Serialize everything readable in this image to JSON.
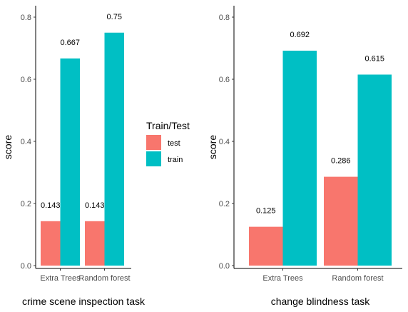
{
  "colors": {
    "test": "#F8766D",
    "train": "#00BFC4",
    "axis": "#000000",
    "tick_text": "#4d4d4d"
  },
  "legend": {
    "title": "Train/Test",
    "items": [
      {
        "key": "test",
        "label": "test"
      },
      {
        "key": "train",
        "label": "train"
      }
    ]
  },
  "chart_data": [
    {
      "type": "bar",
      "title": "",
      "xlabel": "crime scene inspection task",
      "ylabel": "score",
      "ylim": [
        0,
        0.8
      ],
      "yticks": [
        "0.0",
        "0.2",
        "0.4",
        "0.6",
        "0.8"
      ],
      "categories": [
        "Extra Trees",
        "Random forest"
      ],
      "series": [
        {
          "name": "test",
          "values": [
            0.143,
            0.143
          ],
          "labels": [
            "0.143",
            "0.143"
          ]
        },
        {
          "name": "train",
          "values": [
            0.667,
            0.75
          ],
          "labels": [
            "0.667",
            "0.75"
          ]
        }
      ],
      "grid": false,
      "legend_position": "right"
    },
    {
      "type": "bar",
      "title": "",
      "xlabel": "change blindness task",
      "ylabel": "score",
      "ylim": [
        0,
        0.8
      ],
      "yticks": [
        "0.0",
        "0.2",
        "0.4",
        "0.6",
        "0.8"
      ],
      "categories": [
        "Extra Trees",
        "Random forest"
      ],
      "series": [
        {
          "name": "test",
          "values": [
            0.125,
            0.286
          ],
          "labels": [
            "0.125",
            "0.286"
          ]
        },
        {
          "name": "train",
          "values": [
            0.692,
            0.615
          ],
          "labels": [
            "0.692",
            "0.615"
          ]
        }
      ],
      "grid": false,
      "legend_position": "none"
    }
  ]
}
